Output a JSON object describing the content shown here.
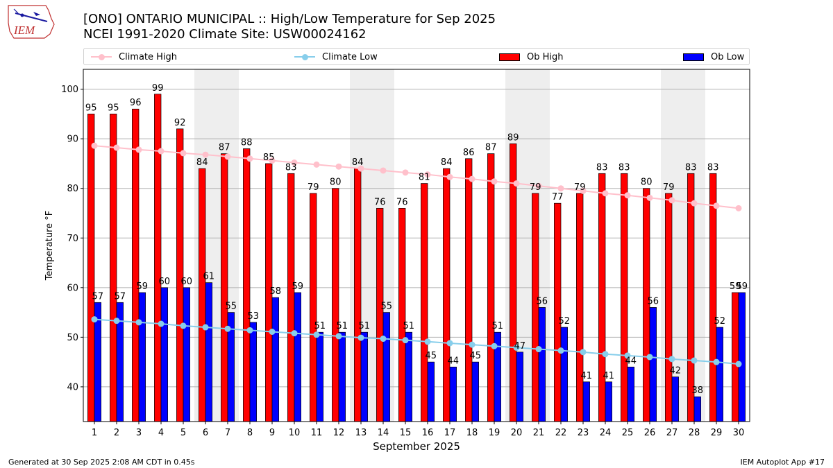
{
  "header": {
    "logo_text": "IEM",
    "title_line1": "[ONO] ONTARIO MUNICIPAL :: High/Low Temperature for Sep 2025",
    "title_line2": "NCEI 1991-2020 Climate Site: USW00024162"
  },
  "footer": {
    "left": "Generated at 30 Sep 2025 2:08 AM CDT in 0.45s",
    "right": "IEM Autoplot App #17"
  },
  "colors": {
    "ob_high": "#ff0000",
    "ob_low": "#0000ff",
    "climate_high": "#ffc0cb",
    "climate_low": "#87ceeb",
    "weekend_shade": "#eeeeee",
    "grid": "#b0b0b0"
  },
  "chart_data": {
    "type": "bar",
    "xlabel": "September 2025",
    "ylabel": "Temperature °F",
    "ylim": [
      33,
      104
    ],
    "yticks": [
      40,
      50,
      60,
      70,
      80,
      90,
      100
    ],
    "grid": "horizontal",
    "legend_placement": "top",
    "categories": [
      "1",
      "2",
      "3",
      "4",
      "5",
      "6",
      "7",
      "8",
      "9",
      "10",
      "11",
      "12",
      "13",
      "14",
      "15",
      "16",
      "17",
      "18",
      "19",
      "20",
      "21",
      "22",
      "23",
      "24",
      "25",
      "26",
      "27",
      "28",
      "29",
      "30"
    ],
    "shaded_days": [
      6,
      7,
      13,
      14,
      20,
      21,
      27,
      28
    ],
    "series": [
      {
        "name": "Climate High",
        "kind": "line",
        "values": [
          88.6,
          88.2,
          87.8,
          87.5,
          87.1,
          86.8,
          86.4,
          86.0,
          85.6,
          85.2,
          84.8,
          84.4,
          84.0,
          83.6,
          83.2,
          82.8,
          82.3,
          81.9,
          81.4,
          81.0,
          80.5,
          80.0,
          79.5,
          79.0,
          78.6,
          78.1,
          77.6,
          77.0,
          76.5,
          76.0
        ]
      },
      {
        "name": "Climate Low",
        "kind": "line",
        "values": [
          53.6,
          53.3,
          53.0,
          52.7,
          52.3,
          52.0,
          51.7,
          51.4,
          51.1,
          50.8,
          50.5,
          50.2,
          49.9,
          49.7,
          49.4,
          49.1,
          48.8,
          48.5,
          48.2,
          47.9,
          47.6,
          47.3,
          47.0,
          46.6,
          46.3,
          46.0,
          45.6,
          45.3,
          45.0,
          44.6
        ]
      },
      {
        "name": "Ob High",
        "kind": "bar",
        "values": [
          95,
          95,
          96,
          99,
          92,
          84,
          87,
          88,
          85,
          83,
          79,
          80,
          84,
          76,
          76,
          81,
          84,
          86,
          87,
          89,
          79,
          77,
          79,
          83,
          83,
          80,
          79,
          83,
          83,
          59
        ]
      },
      {
        "name": "Ob Low",
        "kind": "bar",
        "values": [
          57,
          57,
          59,
          60,
          60,
          61,
          55,
          53,
          58,
          59,
          51,
          51,
          51,
          55,
          51,
          45,
          44,
          45,
          51,
          47,
          56,
          52,
          41,
          41,
          44,
          56,
          42,
          38,
          52,
          59
        ]
      }
    ]
  }
}
